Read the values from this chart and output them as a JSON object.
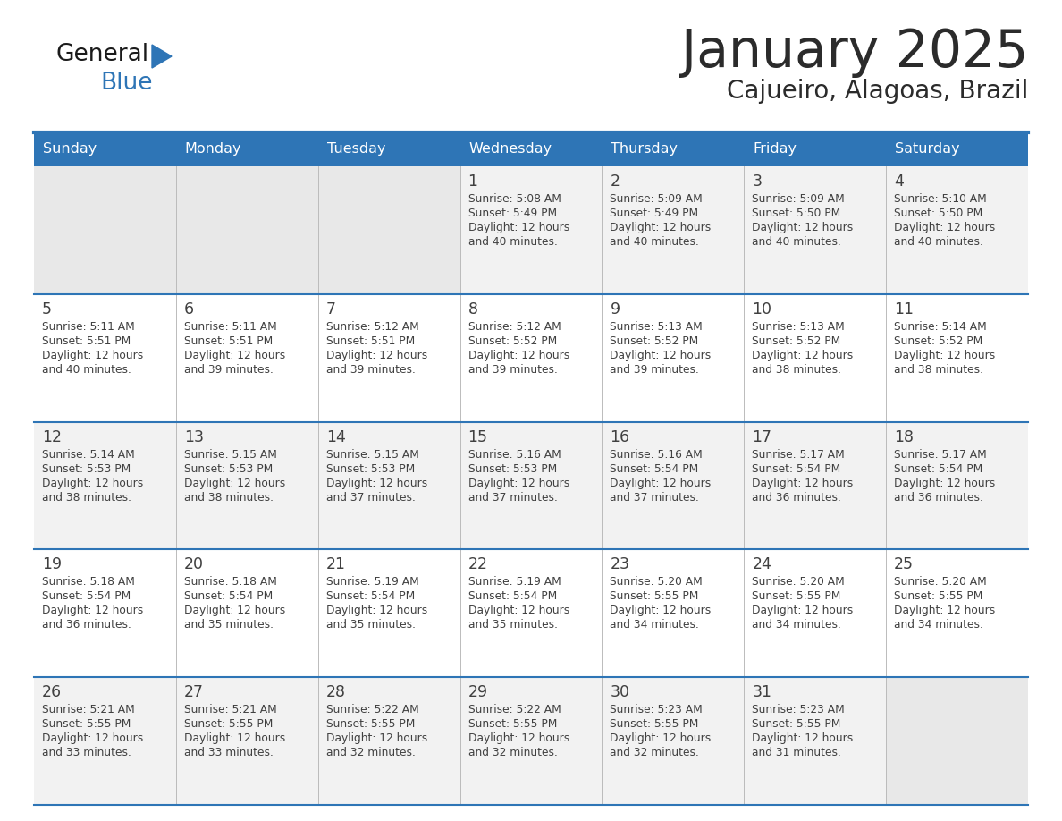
{
  "title": "January 2025",
  "subtitle": "Cajueiro, Alagoas, Brazil",
  "days_of_week": [
    "Sunday",
    "Monday",
    "Tuesday",
    "Wednesday",
    "Thursday",
    "Friday",
    "Saturday"
  ],
  "header_bg": "#2E75B6",
  "header_text": "#FFFFFF",
  "row_bg_odd": "#F2F2F2",
  "row_bg_even": "#FFFFFF",
  "line_color": "#2E75B6",
  "text_color": "#404040",
  "title_color": "#333333",
  "calendar_data": [
    [
      null,
      null,
      null,
      {
        "day": 1,
        "sunrise": "5:08 AM",
        "sunset": "5:49 PM",
        "daylight": "12 hours\nand 40 minutes."
      },
      {
        "day": 2,
        "sunrise": "5:09 AM",
        "sunset": "5:49 PM",
        "daylight": "12 hours\nand 40 minutes."
      },
      {
        "day": 3,
        "sunrise": "5:09 AM",
        "sunset": "5:50 PM",
        "daylight": "12 hours\nand 40 minutes."
      },
      {
        "day": 4,
        "sunrise": "5:10 AM",
        "sunset": "5:50 PM",
        "daylight": "12 hours\nand 40 minutes."
      }
    ],
    [
      {
        "day": 5,
        "sunrise": "5:11 AM",
        "sunset": "5:51 PM",
        "daylight": "12 hours\nand 40 minutes."
      },
      {
        "day": 6,
        "sunrise": "5:11 AM",
        "sunset": "5:51 PM",
        "daylight": "12 hours\nand 39 minutes."
      },
      {
        "day": 7,
        "sunrise": "5:12 AM",
        "sunset": "5:51 PM",
        "daylight": "12 hours\nand 39 minutes."
      },
      {
        "day": 8,
        "sunrise": "5:12 AM",
        "sunset": "5:52 PM",
        "daylight": "12 hours\nand 39 minutes."
      },
      {
        "day": 9,
        "sunrise": "5:13 AM",
        "sunset": "5:52 PM",
        "daylight": "12 hours\nand 39 minutes."
      },
      {
        "day": 10,
        "sunrise": "5:13 AM",
        "sunset": "5:52 PM",
        "daylight": "12 hours\nand 38 minutes."
      },
      {
        "day": 11,
        "sunrise": "5:14 AM",
        "sunset": "5:52 PM",
        "daylight": "12 hours\nand 38 minutes."
      }
    ],
    [
      {
        "day": 12,
        "sunrise": "5:14 AM",
        "sunset": "5:53 PM",
        "daylight": "12 hours\nand 38 minutes."
      },
      {
        "day": 13,
        "sunrise": "5:15 AM",
        "sunset": "5:53 PM",
        "daylight": "12 hours\nand 38 minutes."
      },
      {
        "day": 14,
        "sunrise": "5:15 AM",
        "sunset": "5:53 PM",
        "daylight": "12 hours\nand 37 minutes."
      },
      {
        "day": 15,
        "sunrise": "5:16 AM",
        "sunset": "5:53 PM",
        "daylight": "12 hours\nand 37 minutes."
      },
      {
        "day": 16,
        "sunrise": "5:16 AM",
        "sunset": "5:54 PM",
        "daylight": "12 hours\nand 37 minutes."
      },
      {
        "day": 17,
        "sunrise": "5:17 AM",
        "sunset": "5:54 PM",
        "daylight": "12 hours\nand 36 minutes."
      },
      {
        "day": 18,
        "sunrise": "5:17 AM",
        "sunset": "5:54 PM",
        "daylight": "12 hours\nand 36 minutes."
      }
    ],
    [
      {
        "day": 19,
        "sunrise": "5:18 AM",
        "sunset": "5:54 PM",
        "daylight": "12 hours\nand 36 minutes."
      },
      {
        "day": 20,
        "sunrise": "5:18 AM",
        "sunset": "5:54 PM",
        "daylight": "12 hours\nand 35 minutes."
      },
      {
        "day": 21,
        "sunrise": "5:19 AM",
        "sunset": "5:54 PM",
        "daylight": "12 hours\nand 35 minutes."
      },
      {
        "day": 22,
        "sunrise": "5:19 AM",
        "sunset": "5:54 PM",
        "daylight": "12 hours\nand 35 minutes."
      },
      {
        "day": 23,
        "sunrise": "5:20 AM",
        "sunset": "5:55 PM",
        "daylight": "12 hours\nand 34 minutes."
      },
      {
        "day": 24,
        "sunrise": "5:20 AM",
        "sunset": "5:55 PM",
        "daylight": "12 hours\nand 34 minutes."
      },
      {
        "day": 25,
        "sunrise": "5:20 AM",
        "sunset": "5:55 PM",
        "daylight": "12 hours\nand 34 minutes."
      }
    ],
    [
      {
        "day": 26,
        "sunrise": "5:21 AM",
        "sunset": "5:55 PM",
        "daylight": "12 hours\nand 33 minutes."
      },
      {
        "day": 27,
        "sunrise": "5:21 AM",
        "sunset": "5:55 PM",
        "daylight": "12 hours\nand 33 minutes."
      },
      {
        "day": 28,
        "sunrise": "5:22 AM",
        "sunset": "5:55 PM",
        "daylight": "12 hours\nand 32 minutes."
      },
      {
        "day": 29,
        "sunrise": "5:22 AM",
        "sunset": "5:55 PM",
        "daylight": "12 hours\nand 32 minutes."
      },
      {
        "day": 30,
        "sunrise": "5:23 AM",
        "sunset": "5:55 PM",
        "daylight": "12 hours\nand 32 minutes."
      },
      {
        "day": 31,
        "sunrise": "5:23 AM",
        "sunset": "5:55 PM",
        "daylight": "12 hours\nand 31 minutes."
      },
      null
    ]
  ]
}
